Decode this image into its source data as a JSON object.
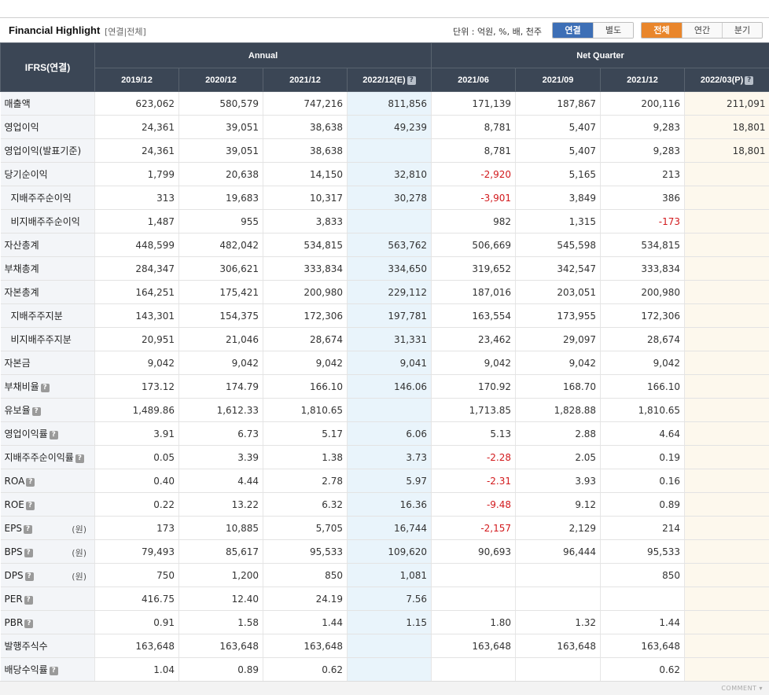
{
  "header": {
    "title": "Financial Highlight",
    "subtitle": "[연결|전체]",
    "unit_label": "단위 : 억원, %, 배, 천주",
    "consolidation_tabs": [
      {
        "label": "연결",
        "active": true
      },
      {
        "label": "별도",
        "active": false
      }
    ],
    "period_tabs": [
      {
        "label": "전체",
        "active": true
      },
      {
        "label": "연간",
        "active": false
      },
      {
        "label": "분기",
        "active": false
      }
    ]
  },
  "table": {
    "corner": "IFRS(연결)",
    "groups": [
      "Annual",
      "Net Quarter"
    ],
    "columns": [
      "2019/12",
      "2020/12",
      "2021/12",
      "2022/12(E)",
      "2021/06",
      "2021/09",
      "2021/12",
      "2022/03(P)"
    ],
    "rows": [
      {
        "label": "매출액",
        "values": [
          "623,062",
          "580,579",
          "747,216",
          "811,856",
          "171,139",
          "187,867",
          "200,116",
          "211,091"
        ]
      },
      {
        "label": "영업이익",
        "values": [
          "24,361",
          "39,051",
          "38,638",
          "49,239",
          "8,781",
          "5,407",
          "9,283",
          "18,801"
        ]
      },
      {
        "label": "영업이익(발표기준)",
        "values": [
          "24,361",
          "39,051",
          "38,638",
          "",
          "8,781",
          "5,407",
          "9,283",
          "18,801"
        ]
      },
      {
        "label": "당기순이익",
        "values": [
          "1,799",
          "20,638",
          "14,150",
          "32,810",
          "-2,920",
          "5,165",
          "213",
          ""
        ]
      },
      {
        "label": "지배주주순이익",
        "sub": true,
        "values": [
          "313",
          "19,683",
          "10,317",
          "30,278",
          "-3,901",
          "3,849",
          "386",
          ""
        ]
      },
      {
        "label": "비지배주주순이익",
        "sub": true,
        "values": [
          "1,487",
          "955",
          "3,833",
          "",
          "982",
          "1,315",
          "-173",
          ""
        ]
      },
      {
        "label": "자산총계",
        "values": [
          "448,599",
          "482,042",
          "534,815",
          "563,762",
          "506,669",
          "545,598",
          "534,815",
          ""
        ]
      },
      {
        "label": "부채총계",
        "values": [
          "284,347",
          "306,621",
          "333,834",
          "334,650",
          "319,652",
          "342,547",
          "333,834",
          ""
        ]
      },
      {
        "label": "자본총계",
        "values": [
          "164,251",
          "175,421",
          "200,980",
          "229,112",
          "187,016",
          "203,051",
          "200,980",
          ""
        ]
      },
      {
        "label": "지배주주지분",
        "sub": true,
        "values": [
          "143,301",
          "154,375",
          "172,306",
          "197,781",
          "163,554",
          "173,955",
          "172,306",
          ""
        ]
      },
      {
        "label": "비지배주주지분",
        "sub": true,
        "values": [
          "20,951",
          "21,046",
          "28,674",
          "31,331",
          "23,462",
          "29,097",
          "28,674",
          ""
        ]
      },
      {
        "label": "자본금",
        "values": [
          "9,042",
          "9,042",
          "9,042",
          "9,041",
          "9,042",
          "9,042",
          "9,042",
          ""
        ]
      },
      {
        "label": "부채비율",
        "help": true,
        "values": [
          "173.12",
          "174.79",
          "166.10",
          "146.06",
          "170.92",
          "168.70",
          "166.10",
          ""
        ]
      },
      {
        "label": "유보율",
        "help": true,
        "values": [
          "1,489.86",
          "1,612.33",
          "1,810.65",
          "",
          "1,713.85",
          "1,828.88",
          "1,810.65",
          ""
        ]
      },
      {
        "label": "영업이익률",
        "help": true,
        "values": [
          "3.91",
          "6.73",
          "5.17",
          "6.06",
          "5.13",
          "2.88",
          "4.64",
          ""
        ]
      },
      {
        "label": "지배주주순이익률",
        "help": true,
        "values": [
          "0.05",
          "3.39",
          "1.38",
          "3.73",
          "-2.28",
          "2.05",
          "0.19",
          ""
        ]
      },
      {
        "label": "ROA",
        "help": true,
        "values": [
          "0.40",
          "4.44",
          "2.78",
          "5.97",
          "-2.31",
          "3.93",
          "0.16",
          ""
        ]
      },
      {
        "label": "ROE",
        "help": true,
        "values": [
          "0.22",
          "13.22",
          "6.32",
          "16.36",
          "-9.48",
          "9.12",
          "0.89",
          ""
        ]
      },
      {
        "label": "EPS",
        "help": true,
        "unit": "(원)",
        "values": [
          "173",
          "10,885",
          "5,705",
          "16,744",
          "-2,157",
          "2,129",
          "214",
          ""
        ]
      },
      {
        "label": "BPS",
        "help": true,
        "unit": "(원)",
        "values": [
          "79,493",
          "85,617",
          "95,533",
          "109,620",
          "90,693",
          "96,444",
          "95,533",
          ""
        ]
      },
      {
        "label": "DPS",
        "help": true,
        "unit": "(원)",
        "values": [
          "750",
          "1,200",
          "850",
          "1,081",
          "",
          "",
          "850",
          ""
        ]
      },
      {
        "label": "PER",
        "help": true,
        "values": [
          "416.75",
          "12.40",
          "24.19",
          "7.56",
          "",
          "",
          "",
          ""
        ]
      },
      {
        "label": "PBR",
        "help": true,
        "values": [
          "0.91",
          "1.58",
          "1.44",
          "1.15",
          "1.80",
          "1.32",
          "1.44",
          ""
        ]
      },
      {
        "label": "발행주식수",
        "values": [
          "163,648",
          "163,648",
          "163,648",
          "",
          "163,648",
          "163,648",
          "163,648",
          ""
        ]
      },
      {
        "label": "배당수익률",
        "help": true,
        "values": [
          "1.04",
          "0.89",
          "0.62",
          "",
          "",
          "",
          "0.62",
          ""
        ]
      }
    ]
  },
  "footer": {
    "comment": "COMMENT ▾"
  },
  "colors": {
    "header_bg": "#3b4655",
    "active_blue": "#3d6fb6",
    "active_orange": "#e9862b",
    "negative": "#d2191c",
    "estimate_bg": "#e9f4fb",
    "provisional_bg": "#fdf8ed"
  }
}
